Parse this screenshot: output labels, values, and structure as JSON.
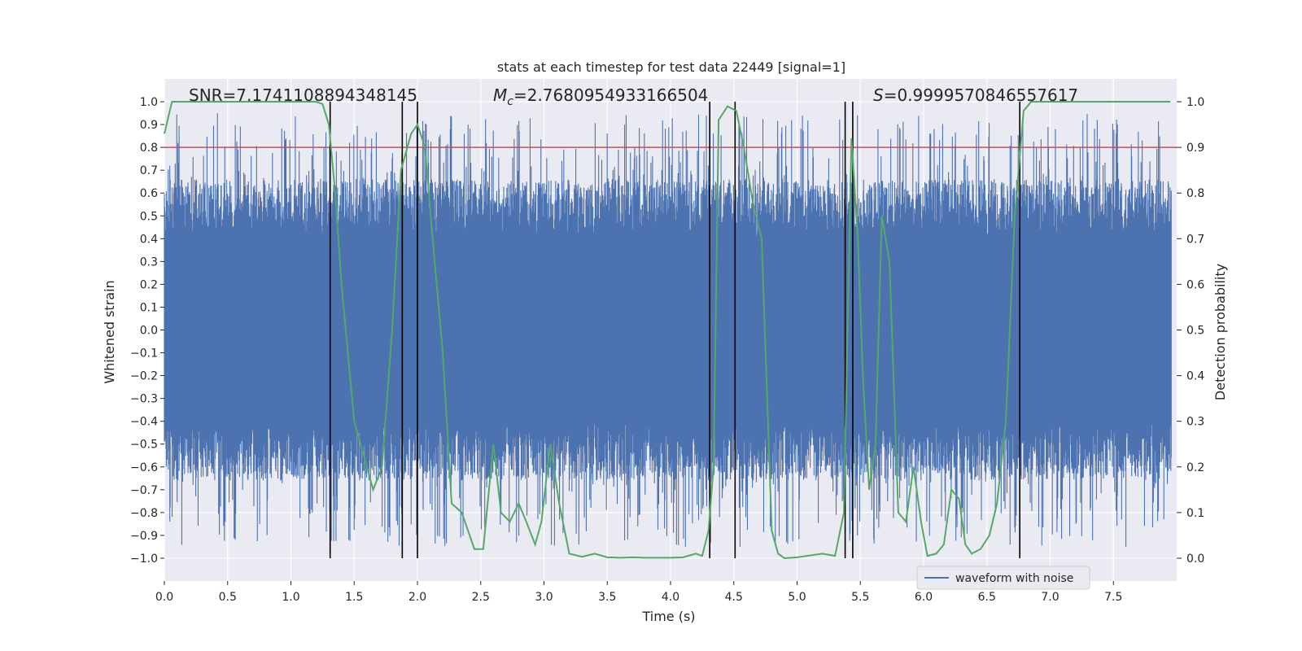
{
  "chart_data": {
    "type": "line",
    "title": "stats at each timestep for test data 22449 [signal=1]",
    "xlabel": "Time (s)",
    "ylabel_left": "Whitened strain",
    "ylabel_right": "Detection probability",
    "xlim": [
      0.0,
      8.0
    ],
    "ylim_left": [
      -1.1,
      1.1
    ],
    "ylim_right": [
      -0.05,
      1.05
    ],
    "xticks": [
      0.0,
      0.5,
      1.0,
      1.5,
      2.0,
      2.5,
      3.0,
      3.5,
      4.0,
      4.5,
      5.0,
      5.5,
      6.0,
      6.5,
      7.0,
      7.5
    ],
    "xtick_labels": [
      "0.0",
      "0.5",
      "1.0",
      "1.5",
      "2.0",
      "2.5",
      "3.0",
      "3.5",
      "4.0",
      "4.5",
      "5.0",
      "5.5",
      "6.0",
      "6.5",
      "7.0",
      "7.5"
    ],
    "yticks_left": [
      -1.0,
      -0.9,
      -0.8,
      -0.7,
      -0.6,
      -0.5,
      -0.4,
      -0.3,
      -0.2,
      -0.1,
      0.0,
      0.1,
      0.2,
      0.3,
      0.4,
      0.5,
      0.6,
      0.7,
      0.8,
      0.9,
      1.0
    ],
    "yticks_left_labels": [
      "−1.0",
      "−0.9",
      "−0.8",
      "−0.7",
      "−0.6",
      "−0.5",
      "−0.4",
      "−0.3",
      "−0.2",
      "−0.1",
      "0.0",
      "0.1",
      "0.2",
      "0.3",
      "0.4",
      "0.5",
      "0.6",
      "0.7",
      "0.8",
      "0.9",
      "1.0"
    ],
    "yticks_right": [
      0.0,
      0.1,
      0.2,
      0.3,
      0.4,
      0.5,
      0.6,
      0.7,
      0.8,
      0.9,
      1.0
    ],
    "yticks_right_labels": [
      "0.0",
      "0.1",
      "0.2",
      "0.3",
      "0.4",
      "0.5",
      "0.6",
      "0.7",
      "0.8",
      "0.9",
      "1.0"
    ],
    "grid": true,
    "annotations": {
      "snr_text": "SNR=7.1741108894348145",
      "mc_symbol": "M",
      "mc_subscript": "c",
      "mc_value": "=2.7680954933166504",
      "s_symbol": "S",
      "s_value": "=0.9999570846557617"
    },
    "threshold": {
      "value": 0.9,
      "axis": "right",
      "color": "#c44e52"
    },
    "vertical_lines": [
      1.31,
      1.88,
      2.0,
      4.31,
      4.51,
      5.38,
      5.44,
      6.76
    ],
    "waveform": {
      "name": "waveform with noise",
      "color": "#4c72b0",
      "envelope_max": 1.0,
      "typical_amplitude": 0.55
    },
    "detection_probability": {
      "color": "#55a868",
      "x": [
        0.0,
        0.06,
        0.5,
        1.0,
        1.2,
        1.25,
        1.3,
        1.35,
        1.4,
        1.5,
        1.6,
        1.65,
        1.72,
        1.8,
        1.87,
        1.95,
        2.0,
        2.06,
        2.12,
        2.2,
        2.27,
        2.35,
        2.45,
        2.52,
        2.6,
        2.66,
        2.73,
        2.8,
        2.86,
        2.93,
        2.98,
        3.05,
        3.12,
        3.2,
        3.3,
        3.4,
        3.5,
        3.6,
        3.7,
        3.8,
        3.9,
        4.0,
        4.1,
        4.2,
        4.25,
        4.3,
        4.34,
        4.38,
        4.45,
        4.52,
        4.58,
        4.65,
        4.72,
        4.8,
        4.85,
        4.9,
        5.0,
        5.2,
        5.3,
        5.37,
        5.43,
        5.48,
        5.52,
        5.57,
        5.62,
        5.67,
        5.73,
        5.8,
        5.86,
        5.92,
        5.98,
        6.03,
        6.1,
        6.16,
        6.22,
        6.28,
        6.33,
        6.38,
        6.45,
        6.52,
        6.58,
        6.65,
        6.72,
        6.79,
        6.85,
        6.9,
        7.2,
        7.5,
        7.7,
        7.95
      ],
      "values": [
        0.93,
        1.0,
        1.0,
        1.0,
        1.0,
        0.995,
        0.95,
        0.8,
        0.6,
        0.3,
        0.2,
        0.15,
        0.2,
        0.5,
        0.85,
        0.93,
        0.95,
        0.9,
        0.7,
        0.45,
        0.12,
        0.1,
        0.02,
        0.02,
        0.25,
        0.1,
        0.08,
        0.12,
        0.08,
        0.03,
        0.08,
        0.25,
        0.12,
        0.01,
        0.003,
        0.01,
        0.002,
        0.001,
        0.002,
        0.001,
        0.001,
        0.001,
        0.002,
        0.01,
        0.005,
        0.06,
        0.2,
        0.96,
        0.99,
        0.98,
        0.9,
        0.78,
        0.7,
        0.06,
        0.01,
        0.0,
        0.002,
        0.01,
        0.005,
        0.1,
        0.92,
        0.7,
        0.4,
        0.15,
        0.25,
        0.75,
        0.65,
        0.1,
        0.08,
        0.2,
        0.08,
        0.005,
        0.01,
        0.03,
        0.15,
        0.13,
        0.03,
        0.01,
        0.02,
        0.05,
        0.12,
        0.3,
        0.75,
        0.98,
        1.0,
        1.0,
        1.0,
        1.0,
        1.0,
        1.0
      ]
    },
    "legend": {
      "placement": "lower-center-right",
      "entries": [
        "waveform with noise"
      ]
    }
  }
}
